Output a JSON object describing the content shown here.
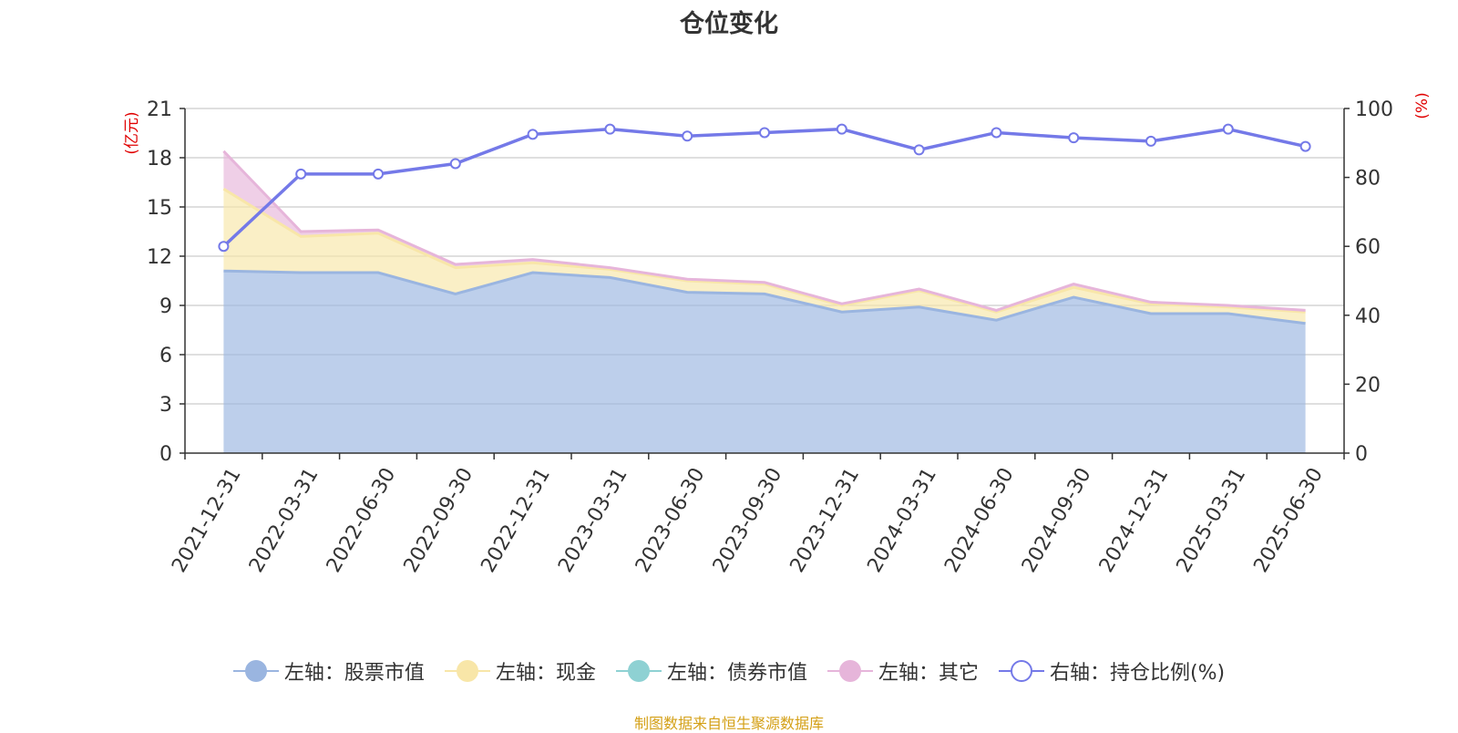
{
  "chart_data": {
    "type": "area",
    "title": "仓位变化",
    "left_axis_unit": "(亿元)",
    "right_axis_unit": "(%)",
    "left_ylim": [
      0,
      21
    ],
    "left_ticks": [
      0,
      3,
      6,
      9,
      12,
      15,
      18,
      21
    ],
    "right_ylim": [
      0,
      100
    ],
    "right_ticks": [
      0,
      20,
      40,
      60,
      80,
      100
    ],
    "categories": [
      "2021-12-31",
      "2022-03-31",
      "2022-06-30",
      "2022-09-30",
      "2022-12-31",
      "2023-03-31",
      "2023-06-30",
      "2023-09-30",
      "2023-12-31",
      "2024-03-31",
      "2024-06-30",
      "2024-09-30",
      "2024-12-31",
      "2025-03-31",
      "2025-06-30"
    ],
    "grid": true,
    "legend_position": "bottom",
    "series": [
      {
        "name": "左轴：股票市值",
        "axis": "left",
        "stack": true,
        "color": "#9ab5e0",
        "values": [
          11.1,
          11.0,
          11.0,
          9.7,
          11.0,
          10.7,
          9.8,
          9.7,
          8.6,
          8.9,
          8.1,
          9.5,
          8.5,
          8.5,
          7.9
        ]
      },
      {
        "name": "左轴：现金",
        "axis": "left",
        "stack": true,
        "color": "#f8e6a8",
        "values": [
          5.0,
          2.2,
          2.4,
          1.6,
          0.6,
          0.5,
          0.7,
          0.6,
          0.4,
          1.0,
          0.5,
          0.6,
          0.6,
          0.4,
          0.7
        ]
      },
      {
        "name": "左轴：债券市值",
        "axis": "left",
        "stack": true,
        "color": "#8ed1d3",
        "values": [
          0,
          0,
          0,
          0,
          0,
          0,
          0,
          0,
          0,
          0,
          0,
          0,
          0,
          0,
          0
        ]
      },
      {
        "name": "左轴：其它",
        "axis": "left",
        "stack": true,
        "color": "#e6b5da",
        "values": [
          2.3,
          0.3,
          0.2,
          0.2,
          0.2,
          0.1,
          0.1,
          0.1,
          0.1,
          0.1,
          0.1,
          0.2,
          0.1,
          0.1,
          0.1
        ]
      },
      {
        "name": "右轴：持仓比例(%)",
        "axis": "right",
        "color": "#7479e8",
        "values": [
          60.0,
          81.0,
          81.0,
          84.0,
          92.5,
          94.0,
          92.0,
          93.0,
          94.0,
          88.0,
          93.0,
          91.5,
          90.5,
          94.0,
          89.0
        ]
      }
    ]
  },
  "source_note": "制图数据来自恒生聚源数据库"
}
